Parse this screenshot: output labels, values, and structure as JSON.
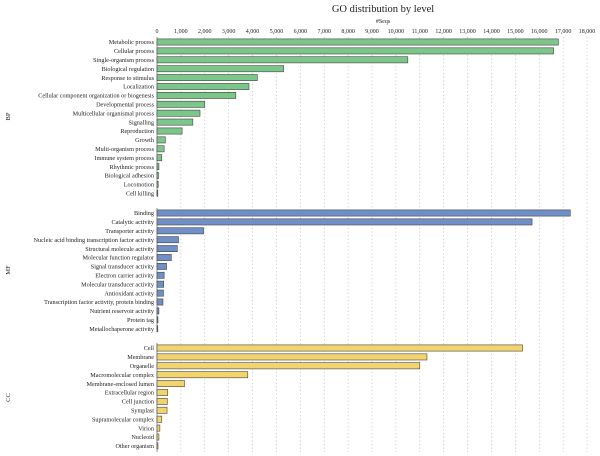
{
  "chart_data": {
    "type": "bar",
    "orientation": "horizontal",
    "title": "GO distribution by level",
    "xlabel": "#Seqs",
    "xlim": [
      0,
      18000
    ],
    "xticks": [
      "0",
      "1,000",
      "2,000",
      "3,000",
      "4,000",
      "5,000",
      "6,000",
      "7,000",
      "8,000",
      "9,000",
      "10,000",
      "11,000",
      "12,000",
      "13,000",
      "14,000",
      "15,000",
      "16,000",
      "17,000",
      "18,000"
    ],
    "grid": true,
    "groups": [
      {
        "label": "BP",
        "color": "#7dc68a",
        "categories": [
          "Metabolic process",
          "Cellular process",
          "Single-organism process",
          "Biological regulation",
          "Response to stimulus",
          "Localization",
          "Cellular component organization or biogenesis",
          "Developmental process",
          "Multicellular organismal process",
          "Signalling",
          "Reproduction",
          "Growth",
          "Multi-organism process",
          "Immune system process",
          "Rhythmic process",
          "Biological adhesion",
          "Locomotion",
          "Cell killing"
        ],
        "values": [
          16800,
          16600,
          10500,
          5300,
          4200,
          3850,
          3300,
          2000,
          1800,
          1500,
          1050,
          350,
          300,
          200,
          80,
          60,
          50,
          30
        ]
      },
      {
        "label": "MF",
        "color": "#6f8fc6",
        "categories": [
          "Binding",
          "Catalytic activity",
          "Transporter activity",
          "Nucleic acid binding transcription factor activity",
          "Structural molecule activity",
          "Molecular function regulator",
          "Signal transducer activity",
          "Electron carrier activity",
          "Molecular transducer activity",
          "Antioxidant activity",
          "Transcription factor activity, protein binding",
          "Nutrient reservoir activity",
          "Protein tag",
          "Metallochaperone activity"
        ],
        "values": [
          17300,
          15700,
          1950,
          900,
          850,
          600,
          400,
          300,
          280,
          270,
          250,
          80,
          40,
          30
        ]
      },
      {
        "label": "CC",
        "color": "#f2d46f",
        "categories": [
          "Cell",
          "Membrane",
          "Organelle",
          "Macromolecular complex",
          "Membrane-enclosed lumen",
          "Extracellular region",
          "Cell junction",
          "Symplast",
          "Supramolecular complex",
          "Virion",
          "Nucleoid",
          "Other organism"
        ],
        "values": [
          15300,
          11300,
          11000,
          3800,
          1150,
          450,
          430,
          420,
          200,
          120,
          80,
          40
        ]
      }
    ]
  }
}
